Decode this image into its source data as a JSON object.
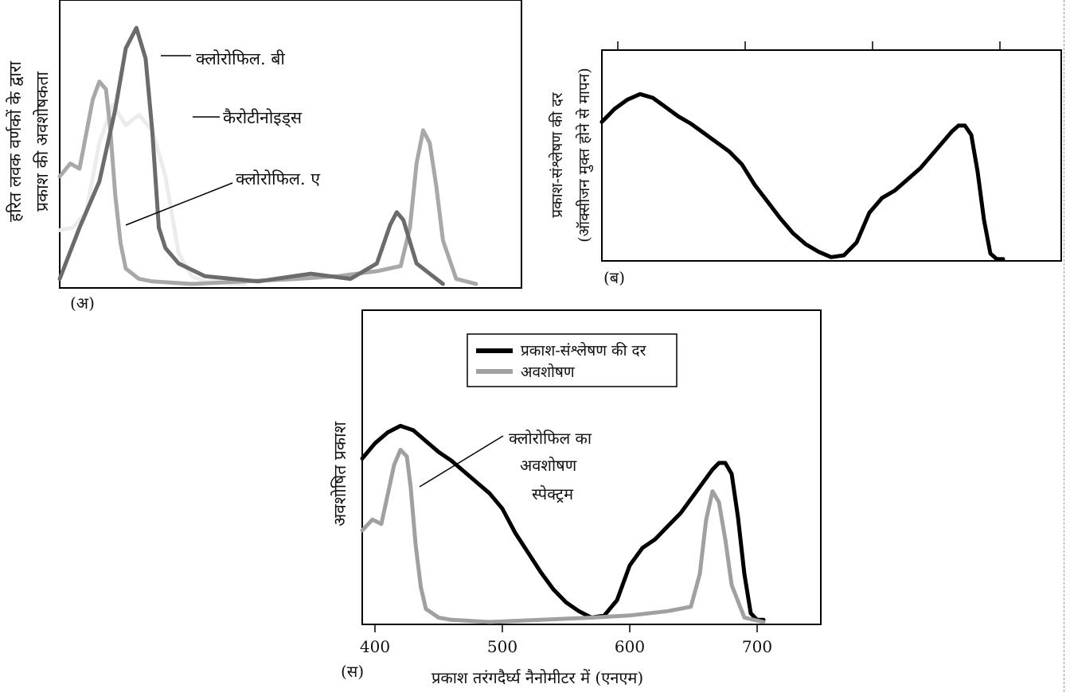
{
  "colors": {
    "chlorophyll_b": "#6b6b6b",
    "chlorophyll_a": "#a8a8a8",
    "carotenoids": "#ececec",
    "photosynthesis": "#000000",
    "absorption": "#a0a0a0",
    "frame": "#000000"
  },
  "chart_data": [
    {
      "id": "A",
      "type": "line",
      "panel_label": "(अ)",
      "ylabel_lines": [
        "हरित लवक वर्णकों के द्वारा",
        "प्रकाश की अवशोषकता"
      ],
      "xlim": [
        390,
        740
      ],
      "ylim": [
        0,
        100
      ],
      "series": [
        {
          "name": "क्लोरोफिल. बी",
          "x": [
            390,
            405,
            420,
            432,
            440,
            448,
            455,
            460,
            465,
            470,
            480,
            500,
            540,
            580,
            610,
            630,
            640,
            645,
            650,
            660,
            680
          ],
          "y": [
            2,
            22,
            40,
            68,
            92,
            100,
            88,
            60,
            22,
            14,
            8,
            3,
            1,
            4,
            2,
            8,
            23,
            28,
            25,
            8,
            0
          ]
        },
        {
          "name": "क्लोरोफिल. ए",
          "x": [
            390,
            398,
            405,
            415,
            420,
            425,
            428,
            432,
            436,
            440,
            450,
            460,
            490,
            530,
            570,
            600,
            630,
            648,
            655,
            660,
            665,
            670,
            675,
            680,
            690,
            705
          ],
          "y": [
            42,
            47,
            45,
            72,
            79,
            76,
            62,
            35,
            16,
            6,
            2,
            1,
            0,
            1,
            2,
            3,
            5,
            7,
            22,
            47,
            60,
            55,
            38,
            17,
            2,
            0
          ]
        },
        {
          "name": "कैरोटीनोइड्स",
          "x": [
            390,
            400,
            410,
            420,
            430,
            440,
            450,
            460,
            470,
            480,
            490,
            500,
            510,
            520,
            530
          ],
          "y": [
            21,
            22,
            28,
            55,
            70,
            62,
            66,
            60,
            42,
            12,
            3,
            1,
            1,
            0,
            0
          ]
        }
      ]
    },
    {
      "id": "B",
      "type": "line",
      "panel_label": "(ब)",
      "ylabel_lines": [
        "प्रकाश-संश्लेषण की दर",
        "(ऑक्सीजन मुक्त होने से मापन)"
      ],
      "xlim": [
        390,
        740
      ],
      "ylim": [
        0,
        100
      ],
      "series": [
        {
          "name": "प्रकाश-संश्लेषण की दर",
          "x": [
            390,
            400,
            410,
            420,
            430,
            440,
            450,
            460,
            470,
            480,
            490,
            500,
            510,
            520,
            530,
            540,
            550,
            560,
            570,
            580,
            590,
            600,
            610,
            620,
            630,
            640,
            650,
            660,
            665,
            670,
            675,
            680,
            685,
            690,
            695,
            700,
            705
          ],
          "y": [
            75,
            82,
            87,
            90,
            88,
            83,
            78,
            74,
            69,
            64,
            59,
            52,
            41,
            32,
            23,
            15,
            9,
            5,
            2,
            3,
            10,
            26,
            34,
            38,
            44,
            50,
            58,
            66,
            70,
            73,
            73,
            68,
            48,
            22,
            4,
            1,
            1
          ]
        }
      ]
    },
    {
      "id": "C",
      "type": "line",
      "panel_label": "(स)",
      "xlabel": "प्रकाश तरंगदैर्घ्य नैनोमीटर में (एनएम)",
      "ylabel": "अवशोषित प्रकाश",
      "xlim": [
        390,
        740
      ],
      "ylim": [
        0,
        100
      ],
      "xticks": [
        "400",
        "500",
        "600",
        "700"
      ],
      "xtick_values": [
        400,
        500,
        600,
        700
      ],
      "legend": [
        {
          "label": "प्रकाश-संश्लेषण की दर",
          "swatch": "black"
        },
        {
          "label": "अवशोषण",
          "swatch": "gray"
        }
      ],
      "annotation_lines": [
        "क्लोरोफिल का",
        "अवशोषण",
        "स्पेक्ट्रम"
      ],
      "series": [
        {
          "name": "प्रकाश-संश्लेषण की दर",
          "x": [
            390,
            400,
            410,
            420,
            430,
            440,
            450,
            460,
            470,
            480,
            490,
            500,
            510,
            520,
            530,
            540,
            550,
            560,
            570,
            580,
            590,
            600,
            610,
            620,
            630,
            640,
            650,
            660,
            665,
            670,
            675,
            680,
            685,
            690,
            695,
            700,
            705
          ],
          "y": [
            75,
            82,
            87,
            90,
            88,
            83,
            78,
            74,
            69,
            64,
            59,
            52,
            41,
            32,
            23,
            15,
            9,
            5,
            2,
            3,
            10,
            26,
            34,
            38,
            44,
            50,
            58,
            66,
            70,
            73,
            73,
            68,
            48,
            22,
            4,
            1,
            1
          ]
        },
        {
          "name": "अवशोषण",
          "x": [
            390,
            398,
            405,
            415,
            420,
            425,
            428,
            432,
            436,
            440,
            450,
            460,
            490,
            530,
            570,
            600,
            630,
            648,
            655,
            660,
            665,
            670,
            675,
            680,
            690,
            705
          ],
          "y": [
            42,
            47,
            45,
            72,
            79,
            76,
            62,
            35,
            16,
            6,
            2,
            1,
            0,
            1,
            2,
            3,
            5,
            7,
            22,
            47,
            60,
            55,
            38,
            17,
            2,
            0
          ]
        }
      ]
    }
  ]
}
